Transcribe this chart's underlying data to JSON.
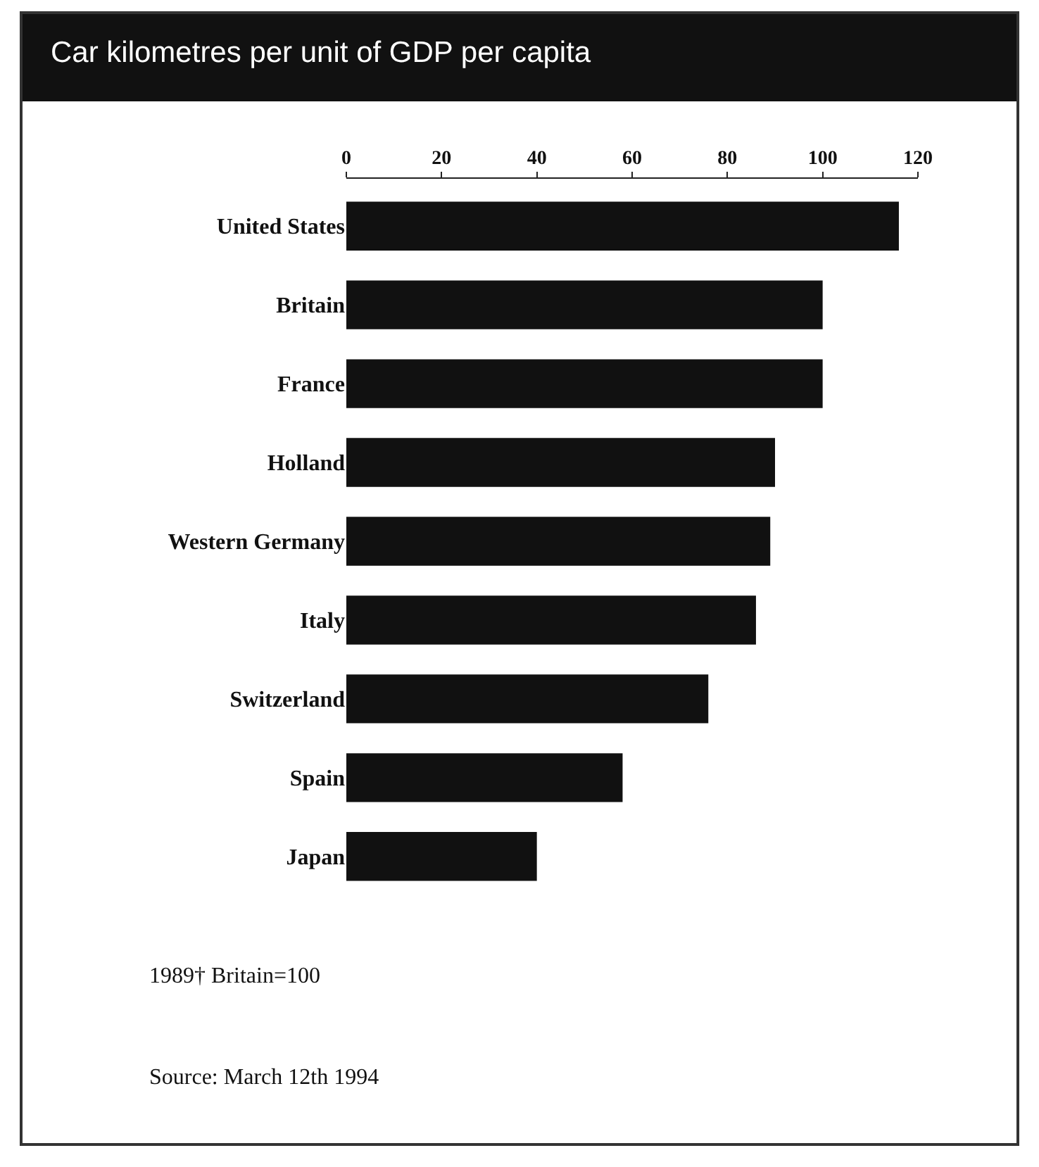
{
  "chart_data": {
    "type": "bar",
    "orientation": "horizontal",
    "title": "Car kilometres per unit of GDP per capita",
    "categories": [
      "United States",
      "Britain",
      "France",
      "Holland",
      "Western Germany",
      "Italy",
      "Switzerland",
      "Spain",
      "Japan"
    ],
    "values": [
      116,
      100,
      100,
      90,
      89,
      86,
      76,
      58,
      40
    ],
    "color": "#111111",
    "xlim": [
      0,
      120
    ],
    "xticks": [
      0,
      20,
      40,
      60,
      80,
      100,
      120
    ],
    "grid": false,
    "annotations": [
      "1989† Britain=100",
      "Source: March 12th 1994"
    ]
  }
}
